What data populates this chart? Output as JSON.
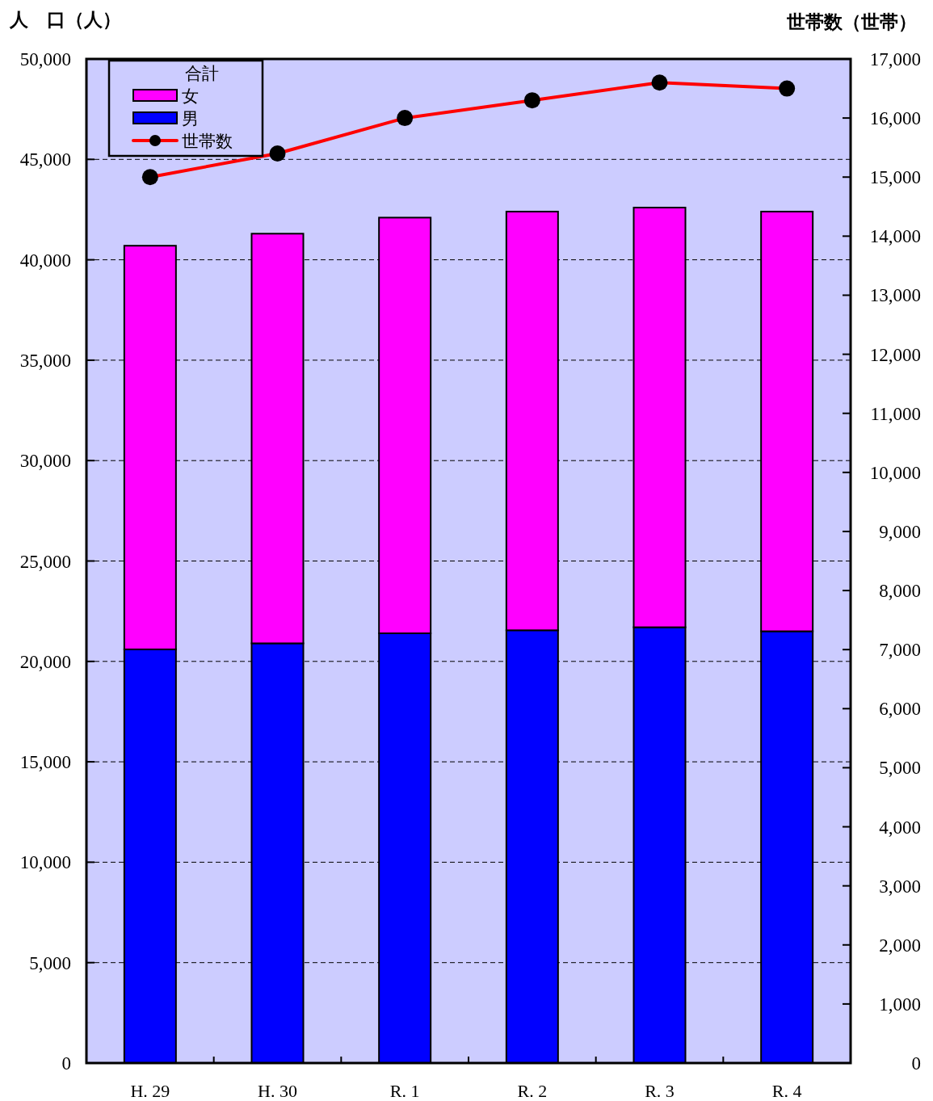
{
  "chart_data": {
    "type": "bar",
    "stacked": true,
    "ylabel": "人　口（人）",
    "y2label": "世帯数（世帯）",
    "legend_title": "合計",
    "legend": "top left",
    "grid": "y",
    "marker": "circle",
    "line_style": "solid",
    "categories": [
      "H. 29",
      "H. 30",
      "R. 1",
      "R. 2",
      "R. 3",
      "R. 4"
    ],
    "series": [
      {
        "name": "男",
        "color": "#0000ff",
        "values": [
          20600,
          20900,
          21400,
          21550,
          21700,
          21500
        ]
      },
      {
        "name": "女",
        "color": "#ff00ff",
        "values": [
          20100,
          20400,
          20700,
          20850,
          20900,
          20900
        ]
      },
      {
        "name": "世帯数",
        "type": "line",
        "axis": "y2",
        "color": "#ff0000",
        "values": [
          15000,
          15400,
          16000,
          16300,
          16600,
          16500
        ]
      }
    ],
    "ylim": [
      0,
      50000
    ],
    "yticks": [
      0,
      {
        "value": 5000,
        "label": "5,000"
      },
      {
        "value": 10000,
        "label": "10,000"
      },
      {
        "value": 15000,
        "label": "15,000"
      },
      {
        "value": 20000,
        "label": "20,000"
      },
      {
        "value": 25000,
        "label": "25,000"
      },
      {
        "value": 30000,
        "label": "30,000"
      },
      {
        "value": 35000,
        "label": "35,000"
      },
      {
        "value": 40000,
        "label": "40,000"
      },
      {
        "value": 45000,
        "label": "45,000"
      },
      {
        "value": 50000,
        "label": "50,000"
      }
    ],
    "y2lim": [
      0,
      17000
    ],
    "y2ticks": [
      0,
      {
        "value": 1000,
        "label": "1,000"
      },
      {
        "value": 2000,
        "label": "2,000"
      },
      {
        "value": 3000,
        "label": "3,000"
      },
      {
        "value": 4000,
        "label": "4,000"
      },
      {
        "value": 5000,
        "label": "5,000"
      },
      {
        "value": 6000,
        "label": "6,000"
      },
      {
        "value": 7000,
        "label": "7,000"
      },
      {
        "value": 8000,
        "label": "8,000"
      },
      {
        "value": 9000,
        "label": "9,000"
      },
      {
        "value": 10000,
        "label": "10,000"
      },
      {
        "value": 11000,
        "label": "11,000"
      },
      {
        "value": 12000,
        "label": "12,000"
      },
      {
        "value": 13000,
        "label": "13,000"
      },
      {
        "value": 14000,
        "label": "14,000"
      },
      {
        "value": 15000,
        "label": "15,000"
      },
      {
        "value": 16000,
        "label": "16,000"
      },
      {
        "value": 17000,
        "label": "17,000"
      }
    ]
  }
}
